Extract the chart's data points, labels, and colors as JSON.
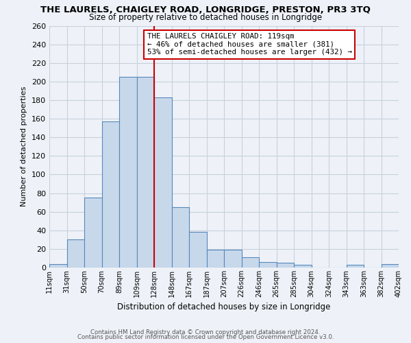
{
  "title": "THE LAURELS, CHAIGLEY ROAD, LONGRIDGE, PRESTON, PR3 3TQ",
  "subtitle": "Size of property relative to detached houses in Longridge",
  "xlabel": "Distribution of detached houses by size in Longridge",
  "ylabel": "Number of detached properties",
  "bar_labels": [
    "11sqm",
    "31sqm",
    "50sqm",
    "70sqm",
    "89sqm",
    "109sqm",
    "128sqm",
    "148sqm",
    "167sqm",
    "187sqm",
    "207sqm",
    "226sqm",
    "246sqm",
    "265sqm",
    "285sqm",
    "304sqm",
    "324sqm",
    "343sqm",
    "363sqm",
    "382sqm",
    "402sqm"
  ],
  "bar_heights": [
    4,
    30,
    75,
    157,
    205,
    205,
    183,
    65,
    38,
    19,
    19,
    11,
    6,
    5,
    3,
    0,
    0,
    3,
    0,
    4
  ],
  "bar_color": "#c8d8eb",
  "bar_edge_color": "#5588bb",
  "vline_x": 9,
  "vline_color": "#cc0000",
  "annotation_title": "THE LAURELS CHAIGLEY ROAD: 119sqm",
  "annotation_line1": "← 46% of detached houses are smaller (381)",
  "annotation_line2": "53% of semi-detached houses are larger (432) →",
  "annotation_box_color": "#ffffff",
  "annotation_box_edge": "#cc0000",
  "ylim": [
    0,
    260
  ],
  "yticks": [
    0,
    20,
    40,
    60,
    80,
    100,
    120,
    140,
    160,
    180,
    200,
    220,
    240,
    260
  ],
  "footnote1": "Contains HM Land Registry data © Crown copyright and database right 2024.",
  "footnote2": "Contains public sector information licensed under the Open Government Licence v3.0.",
  "bg_color": "#eef2f8",
  "plot_bg_color": "#eef2f8",
  "grid_color": "#c8d0dc"
}
